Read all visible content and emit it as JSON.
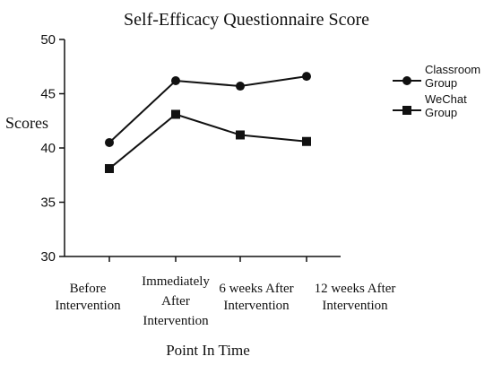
{
  "chart_data": {
    "type": "line",
    "title": "Self-Efficacy Questionnaire Score",
    "xlabel": "Point In Time",
    "ylabel": "Scores",
    "categories": [
      [
        "Before",
        "Intervention"
      ],
      [
        "Immediately",
        "After",
        "Intervention"
      ],
      [
        "6 weeks After",
        "Intervention"
      ],
      [
        "12 weeks After",
        "Intervention"
      ]
    ],
    "ylim": [
      30,
      50
    ],
    "yticks": [
      30,
      35,
      40,
      45,
      50
    ],
    "grid": false,
    "legend_position": "right",
    "series": [
      {
        "name": [
          "Classroom",
          "Group"
        ],
        "marker": "circle",
        "color": "#111111",
        "values": [
          40.5,
          46.2,
          45.7,
          46.6
        ]
      },
      {
        "name": [
          "WeChat",
          "Group"
        ],
        "marker": "square",
        "color": "#111111",
        "values": [
          38.1,
          43.1,
          41.2,
          40.6
        ]
      }
    ]
  }
}
